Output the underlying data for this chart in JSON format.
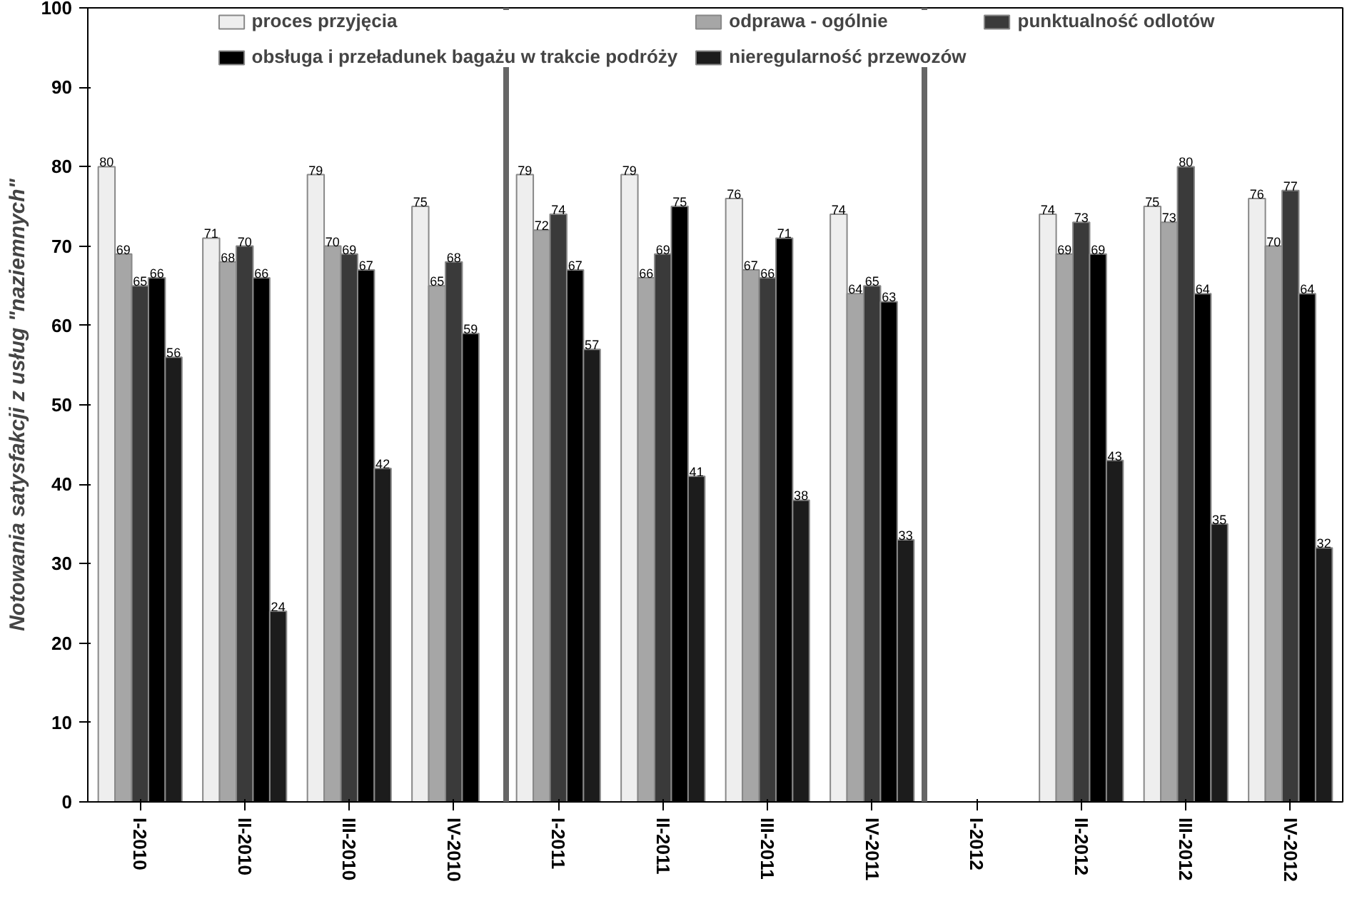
{
  "chart_data": {
    "type": "bar",
    "ylabel": "Notowania satysfakcji z usług \"naziemnych\"",
    "categories": [
      "I-2010",
      "II-2010",
      "III-2010",
      "IV-2010",
      "I-2011",
      "II-2011",
      "III-2011",
      "IV-2011",
      "I-2012",
      "II-2012",
      "III-2012",
      "IV-2012"
    ],
    "series": [
      {
        "name": "proces przyjęcia",
        "color": "#eeeeee",
        "values": [
          80,
          71,
          79,
          75,
          79,
          79,
          76,
          74,
          null,
          74,
          75,
          76
        ]
      },
      {
        "name": "odprawa - ogólnie",
        "color": "#a6a6a6",
        "values": [
          69,
          68,
          70,
          65,
          72,
          66,
          67,
          64,
          null,
          69,
          73,
          70
        ]
      },
      {
        "name": "punktualność odlotów",
        "color": "#3a3a3a",
        "values": [
          65,
          70,
          69,
          68,
          74,
          69,
          66,
          65,
          null,
          73,
          80,
          77
        ]
      },
      {
        "name": "obsługa i przeładunek bagażu w trakcie podróży",
        "color": "#000000",
        "values": [
          66,
          66,
          67,
          59,
          67,
          75,
          71,
          63,
          null,
          69,
          64,
          64
        ]
      },
      {
        "name": "nieregularność przewozów",
        "color": "#1c1c1c",
        "values": [
          56,
          24,
          42,
          null,
          57,
          41,
          38,
          33,
          null,
          43,
          35,
          32
        ]
      }
    ],
    "ylim": [
      0,
      100
    ],
    "yticks": [
      0,
      10,
      20,
      30,
      40,
      50,
      60,
      70,
      80,
      90,
      100
    ],
    "data_labels": true,
    "grid": false,
    "legend": "top"
  }
}
